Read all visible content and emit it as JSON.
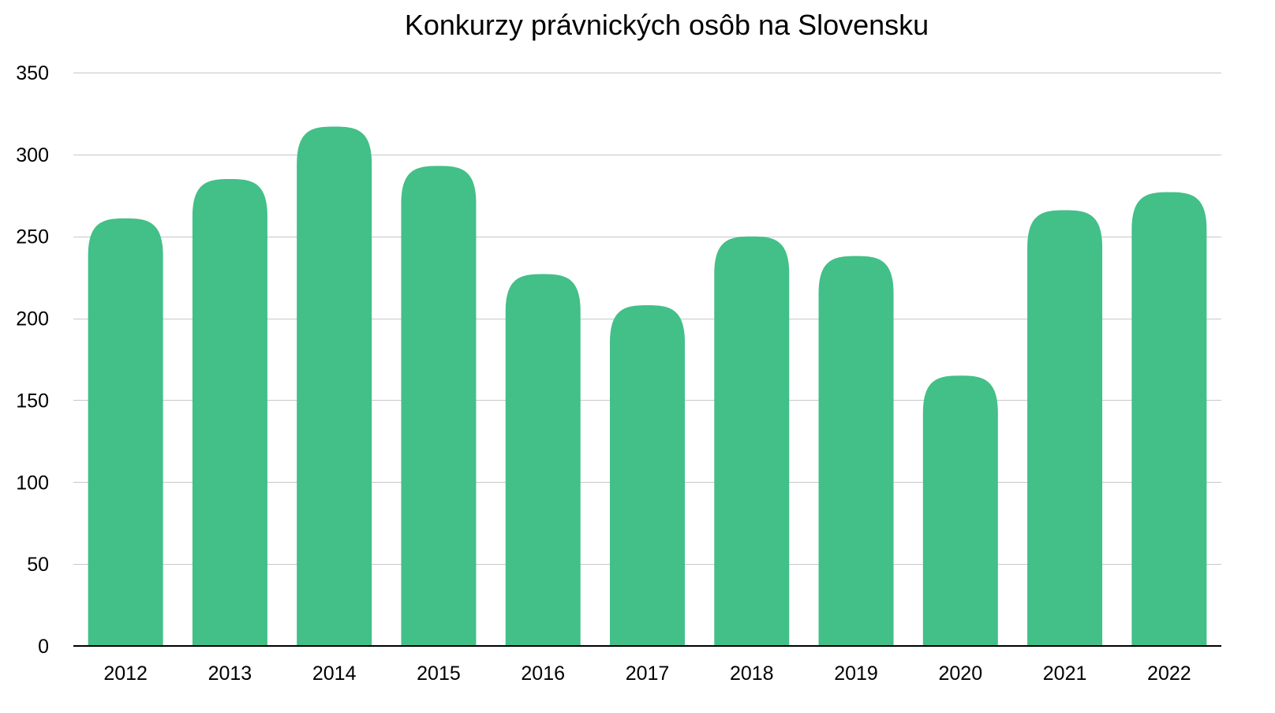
{
  "chart_data": {
    "type": "bar",
    "title": "Konkurzy právnických osôb na Slovensku",
    "xlabel": "",
    "ylabel": "",
    "categories": [
      "2012",
      "2013",
      "2014",
      "2015",
      "2016",
      "2017",
      "2018",
      "2019",
      "2020",
      "2021",
      "2022"
    ],
    "values": [
      261,
      285,
      317,
      293,
      227,
      208,
      250,
      238,
      165,
      266,
      277
    ],
    "ylim": [
      0,
      350
    ],
    "yticks": [
      "0",
      "50",
      "100",
      "150",
      "200",
      "250",
      "300",
      "350"
    ],
    "grid": true,
    "legend": "none",
    "bar_color": "#43bf88",
    "bar_shape": "rounded-top"
  }
}
